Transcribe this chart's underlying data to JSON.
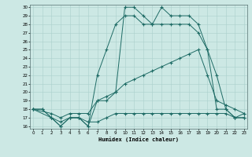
{
  "xlabel": "Humidex (Indice chaleur)",
  "bg_color": "#cce8e4",
  "line_color": "#1e6b65",
  "grid_color": "#aad0cc",
  "xlim": [
    0,
    23
  ],
  "ylim": [
    16,
    30
  ],
  "yticks": [
    16,
    17,
    18,
    19,
    20,
    21,
    22,
    23,
    24,
    25,
    26,
    27,
    28,
    29,
    30
  ],
  "xticks": [
    0,
    1,
    2,
    3,
    4,
    5,
    6,
    7,
    8,
    9,
    10,
    11,
    12,
    13,
    14,
    15,
    16,
    17,
    18,
    19,
    20,
    21,
    22,
    23
  ],
  "lines": [
    {
      "x": [
        0,
        1,
        2,
        3,
        4,
        5,
        6,
        7,
        8,
        9,
        10,
        11,
        12,
        13,
        14,
        15,
        16,
        17,
        18,
        19,
        20,
        21,
        22,
        23
      ],
      "y": [
        18,
        18,
        17,
        16,
        17,
        17,
        16,
        19,
        19,
        20,
        30,
        30,
        29,
        28,
        30,
        29,
        29,
        29,
        28,
        25,
        22,
        18,
        17,
        17
      ]
    },
    {
      "x": [
        0,
        2,
        3,
        4,
        5,
        6,
        7,
        8,
        9,
        10,
        11,
        12,
        13,
        14,
        15,
        16,
        17,
        18,
        19,
        20,
        21,
        22,
        23
      ],
      "y": [
        18,
        17,
        16,
        17,
        17,
        16,
        22,
        25,
        28,
        29,
        29,
        28,
        28,
        28,
        28,
        28,
        28,
        27,
        25,
        18,
        18,
        17,
        17
      ]
    },
    {
      "x": [
        0,
        2,
        3,
        4,
        5,
        6,
        7,
        8,
        9,
        10,
        11,
        12,
        13,
        14,
        15,
        16,
        17,
        18,
        19,
        20,
        21,
        22,
        23
      ],
      "y": [
        18,
        17.5,
        17,
        17.5,
        17.5,
        17.5,
        19,
        19.5,
        20,
        21,
        21.5,
        22,
        22.5,
        23,
        23.5,
        24,
        24.5,
        25,
        22,
        19,
        18.5,
        18,
        17.5
      ]
    },
    {
      "x": [
        0,
        1,
        2,
        3,
        4,
        5,
        6,
        7,
        8,
        9,
        10,
        11,
        12,
        13,
        14,
        15,
        16,
        17,
        18,
        19,
        20,
        21,
        22,
        23
      ],
      "y": [
        18,
        18,
        17,
        16.5,
        17,
        17,
        16.5,
        16.5,
        17,
        17.5,
        17.5,
        17.5,
        17.5,
        17.5,
        17.5,
        17.5,
        17.5,
        17.5,
        17.5,
        17.5,
        17.5,
        17.5,
        17,
        17.5
      ]
    }
  ]
}
